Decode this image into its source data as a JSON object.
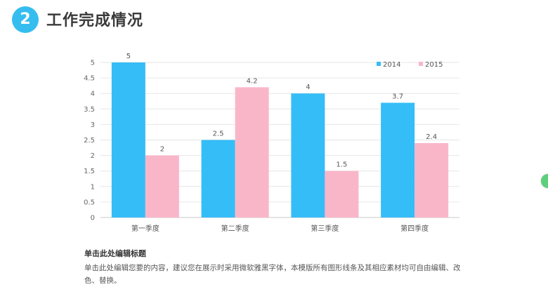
{
  "header": {
    "badge": "2",
    "title": "工作完成情况"
  },
  "chart_data": {
    "type": "bar",
    "categories": [
      "第一季度",
      "第二季度",
      "第三季度",
      "第四季度"
    ],
    "series": [
      {
        "name": "2014",
        "values": [
          5,
          2.5,
          4,
          3.7
        ],
        "color": "#35bdf7"
      },
      {
        "name": "2015",
        "values": [
          2,
          4.2,
          1.5,
          2.4
        ],
        "color": "#fab6c9"
      }
    ],
    "ylim": [
      0,
      5
    ],
    "yticks": [
      "0",
      "0.5",
      "1",
      "1.5",
      "2",
      "2.5",
      "3",
      "3.5",
      "4",
      "4.5",
      "5"
    ],
    "data_labels": [
      [
        "5",
        "2.5",
        "4",
        "3.7"
      ],
      [
        "2",
        "4.2",
        "1.5",
        "2.4"
      ]
    ],
    "grid": true,
    "legend_position": "top-right",
    "title": "",
    "xlabel": "",
    "ylabel": ""
  },
  "caption": {
    "title": "单击此处编辑标题",
    "body": "单击此处编辑您要的内容，建议您在展示时采用微软雅黑字体，本模版所有图形线条及其相应素材均可自由编辑、改色、替换。"
  }
}
